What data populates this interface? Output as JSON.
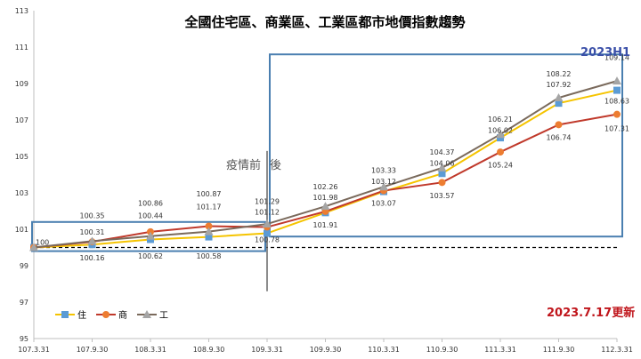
{
  "chart_data": {
    "type": "line",
    "title": "全國住宅區、商業區、工業區都市地價指數趨勢",
    "categories": [
      "107.3.31",
      "107.9.30",
      "108.3.31",
      "108.9.30",
      "109.3.31",
      "109.9.30",
      "110.3.31",
      "110.9.30",
      "111.3.31",
      "111.9.30",
      "112.3.31"
    ],
    "ylim": [
      95,
      113
    ],
    "yticks": [
      95,
      97,
      99,
      101,
      103,
      105,
      107,
      109,
      111,
      113
    ],
    "grid": false,
    "legend_position": "bottom-left",
    "reference_line": 100,
    "series": [
      {
        "name": "住",
        "color": "#f5c400",
        "marker_color": "#5b9bd5",
        "marker": "square",
        "values": [
          100,
          100.16,
          100.44,
          100.58,
          100.78,
          101.91,
          103.07,
          104.06,
          106.02,
          107.92,
          108.63
        ]
      },
      {
        "name": "商",
        "color": "#c0392b",
        "marker_color": "#ed7d31",
        "marker": "circle",
        "values": [
          100,
          100.31,
          100.86,
          101.17,
          101.12,
          101.98,
          103.12,
          103.57,
          105.24,
          106.74,
          107.31
        ]
      },
      {
        "name": "工",
        "color": "#7a6a5c",
        "marker_color": "#a5a5a5",
        "marker": "triangle",
        "values": [
          100,
          100.35,
          100.62,
          100.87,
          101.29,
          102.26,
          103.33,
          104.37,
          106.21,
          108.22,
          109.14
        ]
      }
    ],
    "data_labels": [
      {
        "text": "100",
        "cat": 0,
        "y": 100.15
      },
      {
        "text": "100.35",
        "cat": 1,
        "y": 101.6
      },
      {
        "text": "100.31",
        "cat": 1,
        "y": 100.7
      },
      {
        "text": "100.16",
        "cat": 1,
        "y": 99.3
      },
      {
        "text": "100.86",
        "cat": 2,
        "y": 102.3
      },
      {
        "text": "100.44",
        "cat": 2,
        "y": 101.6
      },
      {
        "text": "100.62",
        "cat": 2,
        "y": 99.4
      },
      {
        "text": "100.87",
        "cat": 3,
        "y": 102.8
      },
      {
        "text": "101.17",
        "cat": 3,
        "y": 102.1
      },
      {
        "text": "100.58",
        "cat": 3,
        "y": 99.4
      },
      {
        "text": "101.29",
        "cat": 4,
        "y": 102.4
      },
      {
        "text": "101.12",
        "cat": 4,
        "y": 101.8
      },
      {
        "text": "100.78",
        "cat": 4,
        "y": 100.3
      },
      {
        "text": "102.26",
        "cat": 5,
        "y": 103.2
      },
      {
        "text": "101.98",
        "cat": 5,
        "y": 102.6
      },
      {
        "text": "101.91",
        "cat": 5,
        "y": 101.1
      },
      {
        "text": "103.33",
        "cat": 6,
        "y": 104.1
      },
      {
        "text": "103.12",
        "cat": 6,
        "y": 103.5
      },
      {
        "text": "103.07",
        "cat": 6,
        "y": 102.3
      },
      {
        "text": "104.37",
        "cat": 7,
        "y": 105.1
      },
      {
        "text": "104.06",
        "cat": 7,
        "y": 104.5
      },
      {
        "text": "103.57",
        "cat": 7,
        "y": 102.7
      },
      {
        "text": "106.21",
        "cat": 8,
        "y": 106.9
      },
      {
        "text": "106.02",
        "cat": 8,
        "y": 106.3
      },
      {
        "text": "105.24",
        "cat": 8,
        "y": 104.4
      },
      {
        "text": "108.22",
        "cat": 9,
        "y": 109.4
      },
      {
        "text": "107.92",
        "cat": 9,
        "y": 108.8
      },
      {
        "text": "106.74",
        "cat": 9,
        "y": 105.9
      },
      {
        "text": "109.14",
        "cat": 10,
        "y": 110.3
      },
      {
        "text": "108.63",
        "cat": 10,
        "y": 107.9
      },
      {
        "text": "107.31",
        "cat": 10,
        "y": 106.4
      }
    ],
    "annotations": {
      "covid_label": "疫情前",
      "covid_after": "後",
      "period": "2023H1",
      "updated": "2023.7.17更新"
    }
  }
}
